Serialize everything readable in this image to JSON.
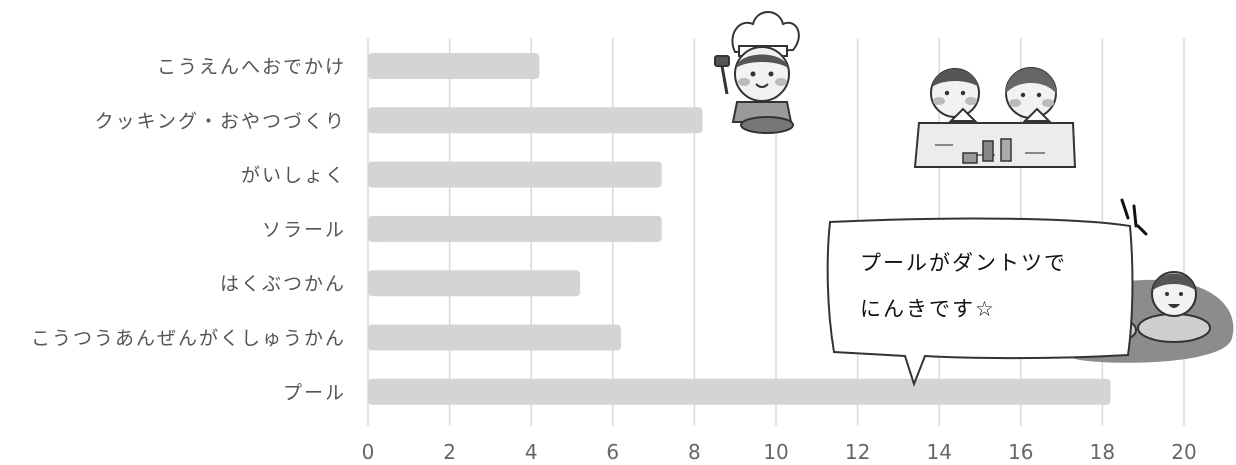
{
  "chart_data": {
    "type": "bar",
    "orientation": "horizontal",
    "categories": [
      "こうえんへおでかけ",
      "クッキング・おやつづくり",
      "がいしょく",
      "ソラール",
      "はくぶつかん",
      "こうつうあんぜんがくしゅうかん",
      "プール"
    ],
    "values": [
      4.2,
      8.2,
      7.2,
      7.2,
      5.2,
      6.2,
      18.2
    ],
    "xlim": [
      0,
      20
    ],
    "xticks": [
      "0",
      "2",
      "4",
      "6",
      "8",
      "10",
      "12",
      "14",
      "16",
      "18",
      "20"
    ],
    "grid": true,
    "bar_color": "#d4d4d4",
    "grid_color": "#d9d9d9",
    "annotation": {
      "lines": [
        "プールがダントツで",
        "にんきです☆"
      ]
    }
  }
}
